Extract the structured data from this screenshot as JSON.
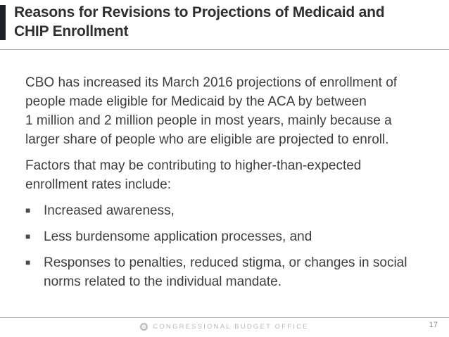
{
  "slide": {
    "title": "Reasons for Revisions to Projections of Medicaid and\nCHIP Enrollment",
    "paragraphs": [
      "CBO has increased its March 2016 projections of enrollment of\npeople made eligible for Medicaid by the ACA by between\n1 million and 2 million people in most years, mainly because a\nlarger share of people who are eligible are projected to enroll.",
      "Factors that may be contributing to higher-than-expected\nenrollment rates include:"
    ],
    "bullet_glyph": "■",
    "bullets": [
      "Increased awareness,",
      "Less burdensome application processes, and",
      "Responses to penalties, reduced stigma, or changes in social\nnorms related to the individual mandate."
    ],
    "footer": {
      "org": "CONGRESSIONAL BUDGET OFFICE",
      "page": "17"
    },
    "colors": {
      "accent_bar": "#1d2025",
      "title_text": "#2f2f2f",
      "body_text": "#3d3d3d",
      "bullet": "#4a4a4a",
      "divider": "#a8a8a8",
      "footer_text": "#b8b8b8",
      "page_number": "#8a8a8a"
    }
  }
}
